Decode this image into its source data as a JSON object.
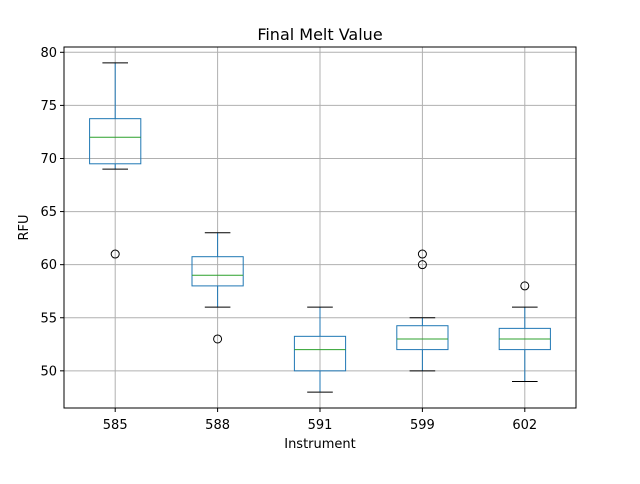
{
  "chart_data": {
    "type": "box",
    "title": "Final Melt Value",
    "xlabel": "Instrument",
    "ylabel": "RFU",
    "categories": [
      "585",
      "588",
      "591",
      "599",
      "602"
    ],
    "ylim": [
      46.5,
      80.5
    ],
    "yticks": [
      50,
      55,
      60,
      65,
      70,
      75,
      80
    ],
    "grid": true,
    "boxes": [
      {
        "category": "585",
        "whisker_low": 69,
        "q1": 69.5,
        "median": 72,
        "q3": 73.75,
        "whisker_high": 79,
        "outliers": [
          61
        ]
      },
      {
        "category": "588",
        "whisker_low": 56,
        "q1": 58,
        "median": 59,
        "q3": 60.75,
        "whisker_high": 63,
        "outliers": [
          53
        ]
      },
      {
        "category": "591",
        "whisker_low": 48,
        "q1": 50,
        "median": 52,
        "q3": 53.25,
        "whisker_high": 56,
        "outliers": []
      },
      {
        "category": "599",
        "whisker_low": 50,
        "q1": 52,
        "median": 53,
        "q3": 54.25,
        "whisker_high": 55,
        "outliers": [
          60,
          61
        ]
      },
      {
        "category": "602",
        "whisker_low": 49,
        "q1": 52,
        "median": 53,
        "q3": 54,
        "whisker_high": 56,
        "outliers": [
          58
        ]
      }
    ],
    "colors": {
      "box": "#1f77b4",
      "median": "#2ca02c",
      "whisker_cap": "#000000",
      "grid": "#b0b0b0",
      "axes": "#000000"
    }
  }
}
